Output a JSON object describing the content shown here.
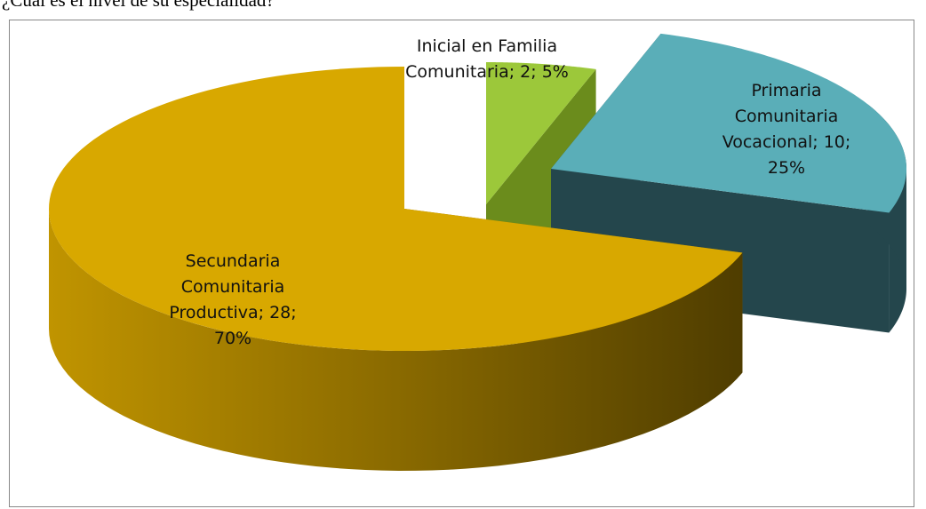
{
  "chart_data": {
    "type": "pie",
    "title": "¿Cuál es el nivel de su especialidad?",
    "categories": [
      "Inicial en Familia Comunitaria",
      "Primaria Comunitaria Vocacional",
      "Secundaria Comunitaria Productiva"
    ],
    "values": [
      2,
      10,
      28
    ],
    "value_labels": [
      "Inicial en Familia Comunitaria; 2; 5%",
      "Primaria Comunitaria Vocacional; 10; 25%",
      "Secundaria Comunitaria Productiva; 28; 70%"
    ],
    "colors": [
      "#9cc83a",
      "#5aaeb8",
      "#d8a800"
    ],
    "side_colors": [
      "#6b8c1c",
      "#24464c",
      "#8a6a00"
    ]
  }
}
